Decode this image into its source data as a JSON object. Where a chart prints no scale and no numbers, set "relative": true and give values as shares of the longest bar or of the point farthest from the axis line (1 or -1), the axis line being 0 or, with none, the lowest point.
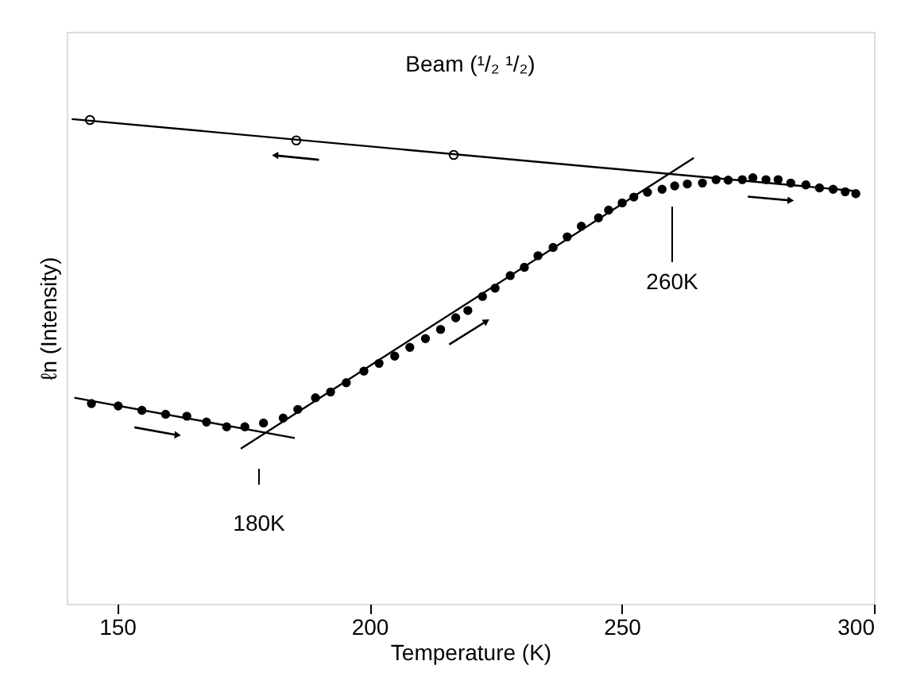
{
  "chart_data": {
    "type": "scatter",
    "title": "Beam (¹/₂ ¹/₂)",
    "xlabel": "Temperature (K)",
    "ylabel": "ℓn (Intensity)",
    "relative": true,
    "xlim": [
      140,
      300
    ],
    "xticks": [
      150,
      200,
      250,
      300
    ],
    "grid": false,
    "series": [
      {
        "color": "#000000",
        "marker": "circle",
        "x": [
          144.6,
          185.5,
          216.7
        ],
        "values": [
          0.998,
          0.956,
          0.926
        ]
      },
      {
        "color": "#000000",
        "marker": "circle",
        "x": [
          144.9,
          150.2,
          154.9,
          159.6,
          163.8,
          167.7,
          171.7,
          175.3,
          179.0,
          182.9,
          185.8,
          189.3,
          192.3,
          195.4,
          198.9,
          201.9,
          205.0,
          208.0,
          211.1,
          214.1,
          217.1,
          219.5,
          222.4,
          224.9,
          227.9,
          230.7,
          233.4,
          236.4,
          239.2,
          242.0,
          245.4,
          247.4,
          250.1,
          252.4,
          255.1,
          258.0,
          260.5,
          263.0,
          266.0,
          268.7,
          271.1,
          273.9,
          276.0,
          278.6,
          281.0,
          283.5,
          286.5,
          289.2,
          291.9,
          294.3,
          296.4
        ],
        "values": [
          0.413,
          0.408,
          0.399,
          0.391,
          0.387,
          0.375,
          0.365,
          0.365,
          0.373,
          0.383,
          0.401,
          0.425,
          0.437,
          0.456,
          0.48,
          0.496,
          0.511,
          0.529,
          0.547,
          0.566,
          0.59,
          0.605,
          0.634,
          0.651,
          0.677,
          0.694,
          0.718,
          0.735,
          0.757,
          0.779,
          0.796,
          0.812,
          0.827,
          0.839,
          0.849,
          0.855,
          0.862,
          0.866,
          0.868,
          0.875,
          0.874,
          0.875,
          0.879,
          0.875,
          0.875,
          0.868,
          0.864,
          0.858,
          0.855,
          0.85,
          0.846
        ]
      },
      {
        "type": "line",
        "color": "#000000",
        "x": [
          141,
          296.9
        ],
        "values": [
          1.0,
          0.851
        ]
      },
      {
        "type": "line",
        "color": "#000000",
        "x": [
          141.5,
          185.2
        ],
        "values": [
          0.425,
          0.342
        ]
      },
      {
        "type": "line",
        "color": "#000000",
        "x": [
          174.5,
          264.3
        ],
        "values": [
          0.32,
          0.92
        ]
      }
    ],
    "annotations": [
      "180K",
      "260K"
    ]
  }
}
